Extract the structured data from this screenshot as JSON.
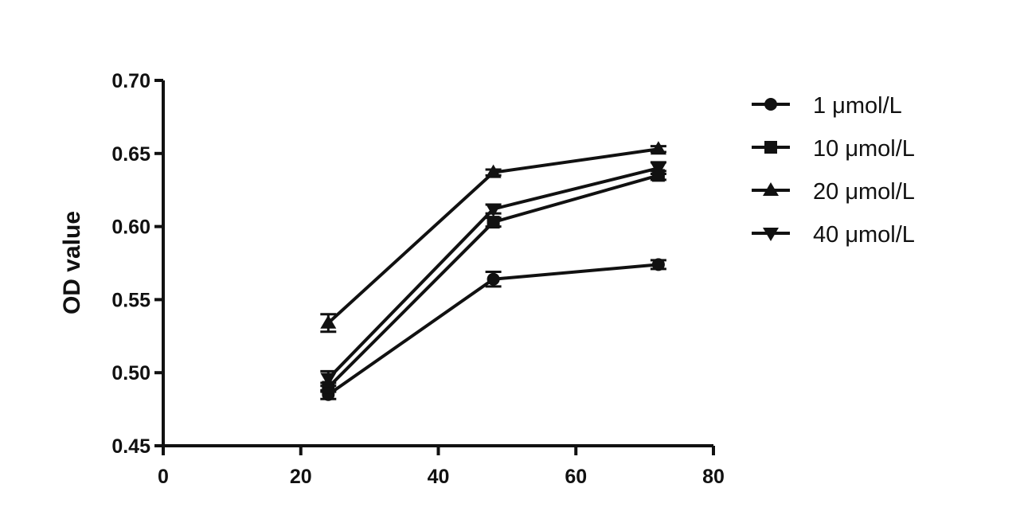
{
  "chart_data": {
    "type": "line",
    "title": "",
    "xlabel": "",
    "ylabel": "OD value",
    "xlim": [
      0,
      80
    ],
    "ylim": [
      0.45,
      0.7
    ],
    "x": [
      24,
      48,
      72
    ],
    "x_ticks": [
      "0",
      "20",
      "40",
      "60",
      "80"
    ],
    "y_ticks": [
      "0.45",
      "0.50",
      "0.55",
      "0.60",
      "0.65",
      "0.70"
    ],
    "grid": false,
    "legend_position": "top-right, outside plot",
    "series": [
      {
        "name": "1 μmol/L",
        "marker": "circle",
        "values": [
          0.485,
          0.564,
          0.574
        ],
        "errors": [
          0.003,
          0.005,
          0.003
        ]
      },
      {
        "name": "10 μmol/L",
        "marker": "square",
        "values": [
          0.49,
          0.603,
          0.635
        ],
        "errors": [
          0.003,
          0.003,
          0.003
        ]
      },
      {
        "name": "20 μmol/L",
        "marker": "triangle-up",
        "values": [
          0.534,
          0.637,
          0.653
        ],
        "errors": [
          0.006,
          0.002,
          0.002
        ]
      },
      {
        "name": "40 μmol/L",
        "marker": "triangle-down",
        "values": [
          0.496,
          0.612,
          0.64
        ],
        "errors": [
          0.005,
          0.003,
          0.004
        ]
      }
    ],
    "colors": {
      "line": "#111111",
      "background": "#ffffff"
    }
  }
}
